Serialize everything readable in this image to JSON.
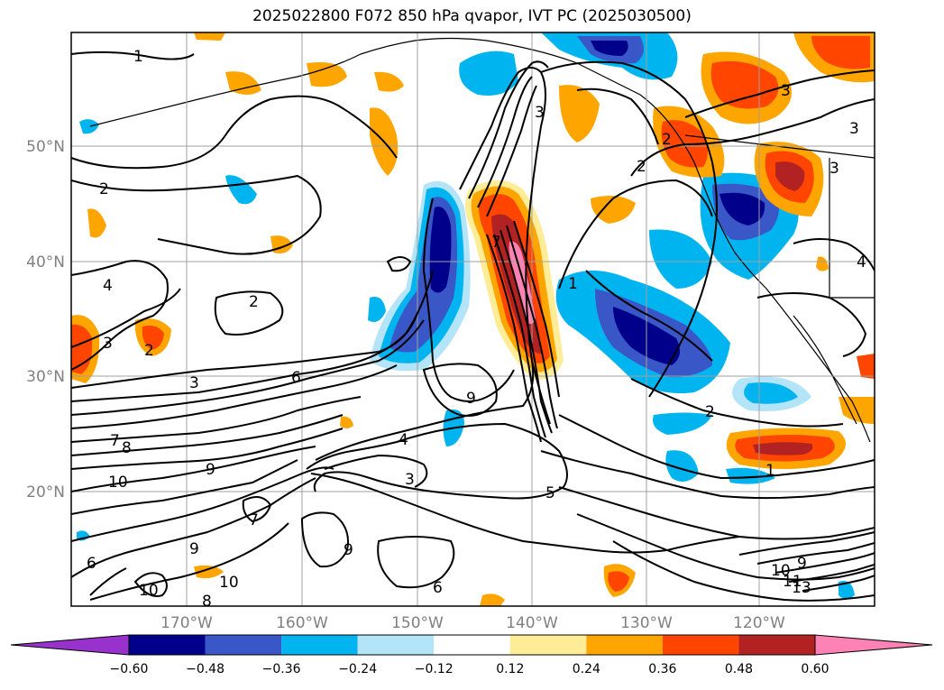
{
  "title": "2025022800 F072 850 hPa qvapor, IVT PC (2025030500)",
  "map": {
    "lat_labels": [
      "50°N",
      "40°N",
      "30°N",
      "20°N"
    ],
    "lon_labels": [
      "170°W",
      "160°W",
      "150°W",
      "140°W",
      "130°W",
      "120°W"
    ],
    "contour_labels": [
      "1",
      "2",
      "2",
      "3",
      "3",
      "2",
      "4",
      "3",
      "2",
      "3",
      "6",
      "9",
      "7",
      "8",
      "10",
      "9",
      "4",
      "3",
      "5",
      "2",
      "1",
      "7",
      "6",
      "9",
      "9",
      "6",
      "10",
      "10",
      "8",
      "9",
      "10",
      "11",
      "13",
      "7",
      "1",
      "3",
      "3",
      "2",
      "4"
    ],
    "fill_colors": {
      "neg_060": "#9932cc",
      "neg_048": "#00008b",
      "neg_036": "#3a57c8",
      "neg_024": "#00b4f0",
      "neg_012": "#b4e4f8",
      "pos_012": "#ffec96",
      "pos_024": "#ffa500",
      "pos_036": "#ff4500",
      "pos_048": "#b22222",
      "pos_060": "#ff82b4"
    }
  },
  "colorbar": {
    "ticks": [
      "−0.60",
      "−0.48",
      "−0.36",
      "−0.24",
      "−0.12",
      "0.12",
      "0.24",
      "0.36",
      "0.48",
      "0.60"
    ],
    "colors": [
      "#9932cc",
      "#00008b",
      "#3a57c8",
      "#3a57c8",
      "#00b4f0",
      "#b4e4f8",
      "#ffffff",
      "#ffec96",
      "#ffa500",
      "#ff4500",
      "#b22222",
      "#ff82b4"
    ]
  }
}
